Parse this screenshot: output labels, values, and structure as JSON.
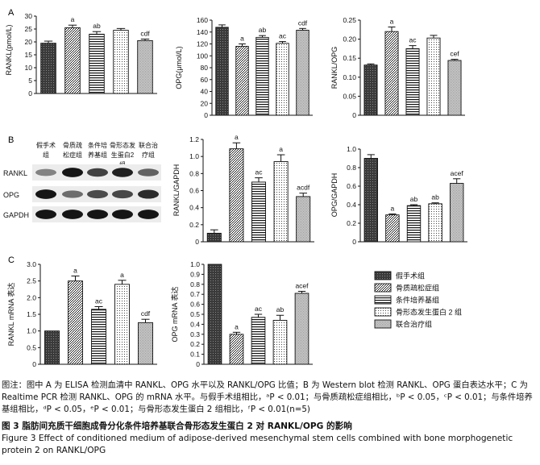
{
  "panel_letters": [
    "A",
    "B",
    "C"
  ],
  "blot": {
    "lanes": [
      "假手术组",
      "骨质疏松症组",
      "条件培养基组",
      "骨形态发生蛋白2组",
      "联合治疗组"
    ],
    "lane_lines": [
      [
        "假手术",
        "组"
      ],
      [
        "骨质疏",
        "松症组"
      ],
      [
        "条件培",
        "养基组"
      ],
      [
        "骨形态发",
        "生蛋白2",
        "组"
      ],
      [
        "联合治",
        "疗组"
      ]
    ],
    "rows": [
      "RANKL",
      "OPG",
      "GAPDH"
    ],
    "band_intensity": {
      "RANKL": [
        0.45,
        0.95,
        0.75,
        0.9,
        0.6
      ],
      "OPG": [
        0.95,
        0.55,
        0.7,
        0.72,
        0.85
      ],
      "GAPDH": [
        0.95,
        0.95,
        0.95,
        0.95,
        0.95
      ]
    }
  },
  "legend": [
    "假手术组",
    "骨质疏松症组",
    "条件培养基组",
    "骨形态发生蛋白 2 组",
    "联合治疗组"
  ],
  "chart_data": [
    {
      "id": "A1",
      "type": "bar",
      "ylabel": "RANKL(pmol/L)",
      "ylim": [
        0,
        30
      ],
      "yticks": [
        0,
        5,
        10,
        15,
        20,
        25,
        30
      ],
      "tick_labels": [
        "0",
        "5",
        "10",
        "15",
        "20",
        "25",
        "30"
      ],
      "values": [
        19.5,
        25.5,
        23,
        24.5,
        20.5
      ],
      "errors": [
        0.8,
        1.0,
        1.0,
        0.7,
        0.6
      ],
      "annotations": [
        "",
        "a",
        "ab",
        "",
        "cdf"
      ]
    },
    {
      "id": "A2",
      "type": "bar",
      "ylabel": "OPG(μmol/L)",
      "ylim": [
        0,
        160
      ],
      "yticks": [
        0,
        20,
        40,
        60,
        80,
        100,
        120,
        140,
        160
      ],
      "tick_labels": [
        "0",
        "20",
        "40",
        "60",
        "80",
        "100",
        "120",
        "140",
        "160"
      ],
      "values": [
        148,
        116,
        131,
        121,
        143
      ],
      "errors": [
        4,
        4,
        3,
        3,
        3
      ],
      "annotations": [
        "",
        "a",
        "ab",
        "ac",
        "cdf"
      ]
    },
    {
      "id": "A3",
      "type": "bar",
      "ylabel": "RANKL/OPG",
      "ylim": [
        0,
        0.25
      ],
      "yticks": [
        0,
        0.05,
        0.1,
        0.15,
        0.2,
        0.25
      ],
      "tick_labels": [
        "0",
        "0.05",
        "0.10",
        "0.15",
        "0.20",
        "0.25"
      ],
      "values": [
        0.132,
        0.22,
        0.175,
        0.203,
        0.144
      ],
      "errors": [
        0.003,
        0.012,
        0.008,
        0.007,
        0.003
      ],
      "annotations": [
        "",
        "a",
        "ac",
        "",
        "cef"
      ]
    },
    {
      "id": "B1",
      "type": "bar",
      "ylabel": "RANKL/GAPDH",
      "ylim": [
        0,
        1.2
      ],
      "yticks": [
        0,
        0.2,
        0.4,
        0.6,
        0.8,
        1.0,
        1.2
      ],
      "tick_labels": [
        "0",
        "0.2",
        "0.4",
        "0.6",
        "0.8",
        "1.0",
        "1.2"
      ],
      "values": [
        0.1,
        1.09,
        0.7,
        0.94,
        0.53
      ],
      "errors": [
        0.04,
        0.07,
        0.05,
        0.08,
        0.04
      ],
      "annotations": [
        "",
        "a",
        "ac",
        "a",
        "acdf"
      ]
    },
    {
      "id": "B2",
      "type": "bar",
      "ylabel": "OPG/GAPDH",
      "ylim": [
        0,
        1.0
      ],
      "yticks": [
        0,
        0.2,
        0.4,
        0.6,
        0.8,
        1.0
      ],
      "tick_labels": [
        "0",
        "0.2",
        "0.4",
        "0.6",
        "0.8",
        "1.0"
      ],
      "values": [
        0.9,
        0.29,
        0.39,
        0.41,
        0.63
      ],
      "errors": [
        0.04,
        0.01,
        0.01,
        0.01,
        0.05
      ],
      "annotations": [
        "",
        "a",
        "ab",
        "ab",
        "acef"
      ]
    },
    {
      "id": "C1",
      "type": "bar",
      "ylabel": "RANKL mRNA 表达",
      "ylim": [
        0,
        3.0
      ],
      "yticks": [
        0,
        0.5,
        1.0,
        1.5,
        2.0,
        2.5,
        3.0
      ],
      "tick_labels": [
        "0",
        "0.5",
        "1.0",
        "1.5",
        "2.0",
        "2.5",
        "3.0"
      ],
      "values": [
        1.0,
        2.5,
        1.65,
        2.4,
        1.25
      ],
      "errors": [
        0,
        0.15,
        0.08,
        0.12,
        0.1
      ],
      "annotations": [
        "",
        "a",
        "ac",
        "a",
        "cdf"
      ]
    },
    {
      "id": "C2",
      "type": "bar",
      "ylabel": "OPG mRNA 表达",
      "ylim": [
        0,
        1.0
      ],
      "yticks": [
        0,
        0.1,
        0.2,
        0.3,
        0.4,
        0.5,
        0.6,
        0.7,
        0.8,
        0.9,
        1.0
      ],
      "tick_labels": [
        "0",
        "0.1",
        "0.2",
        "0.3",
        "0.4",
        "0.5",
        "0.6",
        "0.7",
        "0.8",
        "0.9",
        "1.0"
      ],
      "values": [
        1.0,
        0.3,
        0.47,
        0.44,
        0.71
      ],
      "errors": [
        0,
        0.02,
        0.03,
        0.05,
        0.02
      ],
      "annotations": [
        "",
        "a",
        "ac",
        "ab",
        "acef"
      ]
    }
  ],
  "caption": {
    "note": "图注：图中 A 为 ELISA 检测血清中 RANKL、OPG 水平以及 RANKL/OPG 比值；B 为 Western blot 检测 RANKL、OPG 蛋白表达水平；C 为 Realtime PCR 检测 RANKL、OPG 的 mRNA 水平。与假手术组相比，ᵃP < 0.01；与骨质疏松症组相比，ᵇP < 0.05，ᶜP < 0.01；与条件培养基组相比，ᵈP < 0.05，ᵉP < 0.01；与骨形态发生蛋白 2 组相比，ᶠP < 0.01(n=5)",
    "title_cn": "图 3   脂肪间充质干细胞成骨分化条件培养基联合骨形态发生蛋白 2 对 RANKL/OPG 的影响",
    "title_en": "Figure 3   Effect of conditioned medium of adipose-derived mesenchymal stem cells combined with bone morphogenetic protein 2 on RANKL/OPG"
  }
}
